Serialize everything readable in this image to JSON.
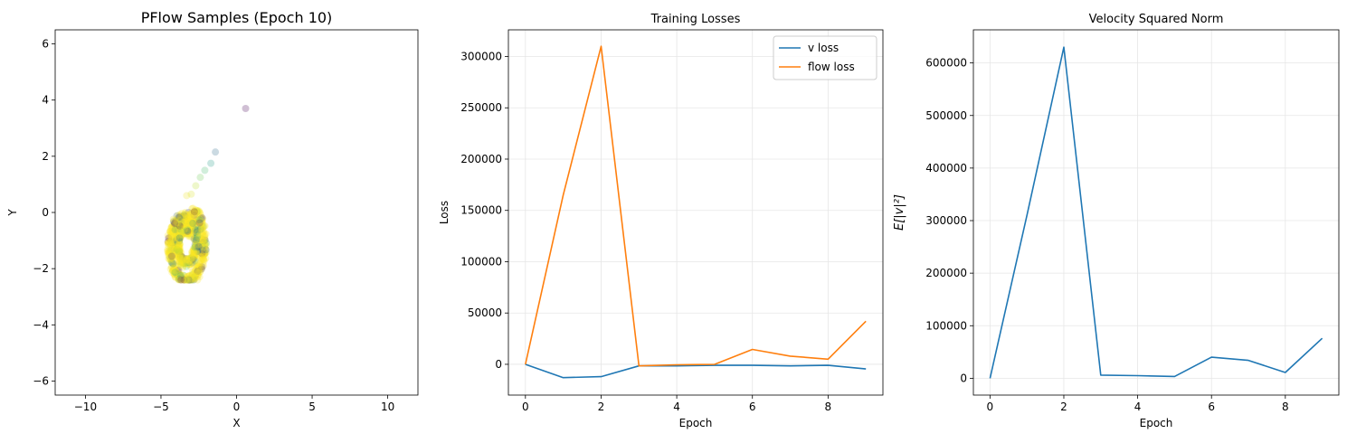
{
  "chart_data": [
    {
      "type": "scatter",
      "title": "PFlow Samples (Epoch 10)",
      "xlabel": "X",
      "ylabel": "Y",
      "xlim": [
        -12,
        12
      ],
      "ylim": [
        -6.5,
        6.5
      ],
      "xticks": [
        -10,
        -5,
        0,
        5,
        10
      ],
      "yticks": [
        -6,
        -4,
        -2,
        0,
        2,
        4,
        6
      ],
      "grid": false,
      "colormap": "viridis",
      "point_alpha": 0.25,
      "outliers": [
        {
          "x": 0.6,
          "y": 3.7,
          "c": 0.0
        },
        {
          "x": -1.4,
          "y": 2.15,
          "c": 0.35
        },
        {
          "x": -1.7,
          "y": 1.75,
          "c": 0.55
        },
        {
          "x": -2.1,
          "y": 1.5,
          "c": 0.7
        },
        {
          "x": -2.4,
          "y": 1.25,
          "c": 0.78
        },
        {
          "x": -2.7,
          "y": 0.95,
          "c": 0.9
        },
        {
          "x": -3.0,
          "y": 0.65,
          "c": 0.95
        },
        {
          "x": -3.3,
          "y": 0.6,
          "c": 0.98
        }
      ],
      "spiral": {
        "center_x": -3.4,
        "center_y": -0.9,
        "extent_x": [
          -4.9,
          -1.9
        ],
        "extent_y": [
          -2.4,
          0.3
        ]
      }
    },
    {
      "type": "line",
      "title": "Training Losses",
      "xlabel": "Epoch",
      "ylabel": "Loss",
      "xlim": [
        -0.45,
        9.45
      ],
      "ylim": [
        -30000,
        326000
      ],
      "xticks": [
        0,
        2,
        4,
        6,
        8
      ],
      "yticks": [
        0,
        50000,
        100000,
        150000,
        200000,
        250000,
        300000
      ],
      "grid": true,
      "legend": "top-right",
      "x": [
        0,
        1,
        2,
        3,
        4,
        5,
        6,
        7,
        8,
        9
      ],
      "series": [
        {
          "name": "v loss",
          "color": "#1f77b4",
          "values": [
            0,
            -13000,
            -12000,
            -1500,
            -1500,
            -1000,
            -1000,
            -1500,
            -1000,
            -4500
          ]
        },
        {
          "name": "flow loss",
          "color": "#ff7f0e",
          "values": [
            0,
            165000,
            310000,
            -1500,
            -500,
            0,
            14500,
            8000,
            5000,
            42000
          ]
        }
      ]
    },
    {
      "type": "line",
      "title": "Velocity Squared Norm",
      "xlabel": "Epoch",
      "ylabel": "E[|v|²]",
      "xlim": [
        -0.45,
        9.45
      ],
      "ylim": [
        -32000,
        663000
      ],
      "xticks": [
        0,
        2,
        4,
        6,
        8
      ],
      "yticks": [
        0,
        100000,
        200000,
        300000,
        400000,
        500000,
        600000
      ],
      "grid": true,
      "x": [
        0,
        1,
        2,
        3,
        4,
        5,
        6,
        7,
        8,
        9
      ],
      "series": [
        {
          "color": "#1f77b4",
          "values": [
            0,
            310000,
            630000,
            6000,
            5000,
            3500,
            40000,
            34000,
            11000,
            76000
          ]
        }
      ]
    }
  ]
}
